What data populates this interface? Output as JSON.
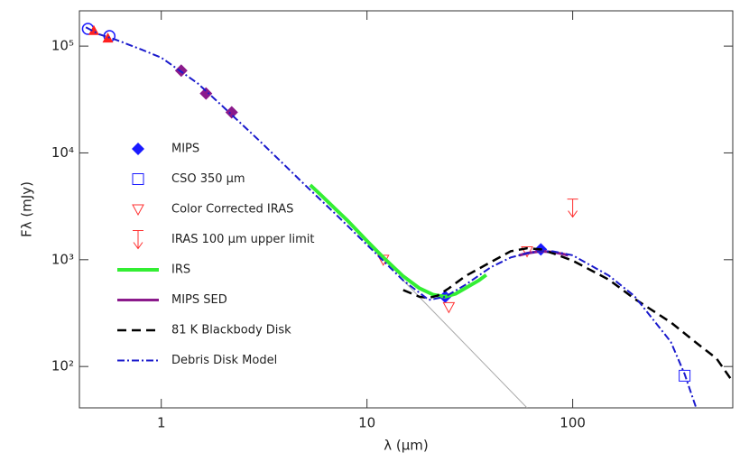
{
  "chart_data": {
    "type": "sed",
    "xlabel": "λ (μm)",
    "ylabel": "Fλ (mJy)",
    "log_x": true,
    "log_y": true,
    "xlim": [
      0.4,
      600
    ],
    "ylim": [
      41,
      214000
    ],
    "xticks": [
      1,
      10,
      100
    ],
    "yticks": [
      {
        "value": 100,
        "label": "10²"
      },
      {
        "value": 1000,
        "label": "10³"
      },
      {
        "value": 10000,
        "label": "10⁴"
      },
      {
        "value": 100000,
        "label": "10⁵"
      }
    ],
    "series": [
      {
        "kind": "line",
        "color": "#aaaaaa",
        "dash": "",
        "width": 1,
        "x": [
          15,
          60
        ],
        "y": [
          640,
          41
        ]
      },
      {
        "kind": "marker",
        "marker": "circle",
        "color": "#1a1aff",
        "x": [
          0.44,
          0.56
        ],
        "y": [
          145000,
          124000
        ]
      },
      {
        "kind": "marker",
        "marker": "triangle-up",
        "color": "#ff2020",
        "x": [
          0.47,
          0.55
        ],
        "y": [
          140000,
          119000
        ]
      },
      {
        "kind": "marker",
        "marker": "diamond",
        "color": "#8b1a8b",
        "x": [
          1.25,
          1.65,
          2.2
        ],
        "y": [
          59000,
          36000,
          24000
        ]
      },
      {
        "name": "MIPS",
        "kind": "marker",
        "marker": "diamond",
        "color": "#1a1aff",
        "x": [
          24,
          70
        ],
        "y": [
          450,
          1250
        ]
      },
      {
        "name": "CSO 350 μm",
        "kind": "marker",
        "marker": "square",
        "color": "#1a1aff",
        "x": [
          350
        ],
        "y": [
          82
        ]
      },
      {
        "name": "Color Corrected IRAS",
        "kind": "marker",
        "marker": "triangle-down",
        "color": "#ff3030",
        "x": [
          12,
          25,
          60
        ],
        "y": [
          1000,
          360,
          1200
        ]
      },
      {
        "name": "IRAS 100 μm upper limit",
        "kind": "marker",
        "marker": "arrow-down",
        "color": "#ff3030",
        "x": [
          100
        ],
        "y": [
          3700
        ]
      },
      {
        "name": "IRS",
        "kind": "line",
        "color": "#33ee33",
        "dash": "",
        "width": 4,
        "x": [
          5.3,
          6,
          7,
          8,
          10,
          12,
          15,
          18,
          21,
          24,
          27,
          30,
          35,
          38
        ],
        "y": [
          5000,
          4000,
          3000,
          2350,
          1500,
          1050,
          700,
          540,
          470,
          450,
          480,
          540,
          640,
          720
        ]
      },
      {
        "name": "MIPS SED",
        "kind": "line",
        "color": "#8b1a8b",
        "dash": "",
        "width": 3,
        "x": [
          55,
          60,
          70,
          80,
          90,
          95
        ],
        "y": [
          1100,
          1150,
          1200,
          1180,
          1130,
          1100
        ]
      },
      {
        "name": "81 K Blackbody Disk",
        "kind": "line",
        "color": "#000000",
        "dash": "10 6",
        "width": 2.5,
        "x": [
          15,
          18,
          20,
          22,
          25,
          30,
          40,
          50,
          60,
          70,
          80,
          100,
          150,
          200,
          300,
          400,
          500,
          600
        ],
        "y": [
          520,
          450,
          440,
          460,
          540,
          700,
          950,
          1200,
          1280,
          1250,
          1150,
          980,
          650,
          430,
          259,
          166,
          119,
          72
        ]
      },
      {
        "name": "Debris Disk Model",
        "kind": "line",
        "color": "#1a1acc",
        "dash": "8 3 2 3",
        "width": 2,
        "x": [
          0.43,
          0.5,
          0.6,
          0.8,
          1,
          1.5,
          2,
          3,
          4,
          5,
          7,
          10,
          15,
          20,
          24,
          30,
          40,
          50,
          60,
          70,
          80,
          100,
          150,
          200,
          300,
          350,
          400
        ],
        "y": [
          150000,
          129000,
          115000,
          93000,
          78000,
          45000,
          27000,
          13000,
          7600,
          5000,
          2700,
          1380,
          640,
          420,
          450,
          580,
          850,
          1050,
          1150,
          1200,
          1200,
          1100,
          710,
          455,
          170,
          85,
          40
        ]
      }
    ]
  }
}
